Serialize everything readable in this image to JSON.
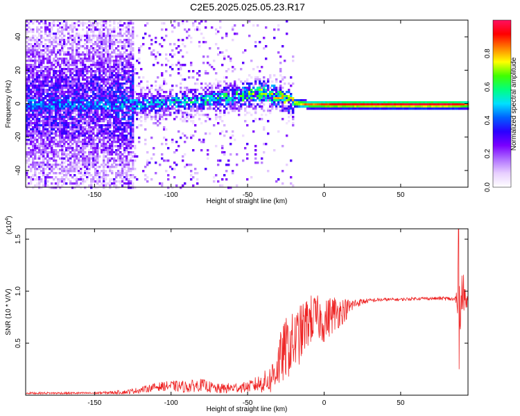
{
  "chart_data": [
    {
      "type": "heatmap",
      "title": "C2E5.2025.025.05.23.R17",
      "xlabel": "Height of straight line (km)",
      "ylabel": "Frequency (Hz)",
      "xlim": [
        -195,
        94
      ],
      "ylim": [
        -50,
        50
      ],
      "xticks": [
        "-150",
        "-100",
        "-50",
        "0",
        "50"
      ],
      "yticks": [
        "-40",
        "-20",
        "0",
        "20",
        "40"
      ],
      "colorbar": {
        "label": "Normalized spectral amplitude",
        "range": [
          0,
          1
        ],
        "ticks": [
          "0.0",
          "0.2",
          "0.4",
          "0.6",
          "0.8"
        ],
        "colormap": [
          "#ffffff",
          "#e8d0ff",
          "#b070ff",
          "#7a00ff",
          "#2a00ff",
          "#0060ff",
          "#00e0ff",
          "#00ff80",
          "#40ff00",
          "#ffff00",
          "#ff8000",
          "#ff0000",
          "#ff1060"
        ]
      },
      "ridge": {
        "x": [
          -195,
          -150,
          -100,
          -75,
          -60,
          -50,
          -40,
          -30,
          -20,
          -10,
          0,
          10,
          30,
          60,
          85,
          94
        ],
        "center_freq": [
          0,
          0,
          1,
          3,
          5,
          6,
          7,
          5,
          1,
          0,
          0,
          0,
          0,
          0,
          0,
          0
        ],
        "peak_amplitude": [
          0.35,
          0.35,
          0.45,
          0.5,
          0.55,
          0.6,
          0.65,
          0.7,
          0.8,
          0.85,
          0.9,
          0.95,
          0.97,
          0.98,
          0.98,
          0.85
        ]
      }
    },
    {
      "type": "line",
      "title": "",
      "xlabel": "Height of straight line (km)",
      "ylabel": "SNR (10 * V/V)",
      "y_multiplier": "(x10",
      "y_multiplier_exp": "4",
      "xlim": [
        -195,
        94
      ],
      "ylim": [
        0,
        1.6
      ],
      "xticks": [
        "-150",
        "-100",
        "-50",
        "0",
        "50"
      ],
      "yticks": [
        "0.5",
        "1.0",
        "1.5"
      ],
      "series": [
        {
          "color": "#ee2222",
          "x": [
            -195,
            -170,
            -150,
            -130,
            -120,
            -110,
            -100,
            -90,
            -80,
            -70,
            -60,
            -50,
            -40,
            -35,
            -30,
            -25,
            -20,
            -15,
            -10,
            -5,
            0,
            5,
            10,
            15,
            20,
            25,
            30,
            40,
            50,
            60,
            70,
            80,
            85,
            88,
            90,
            94
          ],
          "y": [
            0.02,
            0.02,
            0.02,
            0.03,
            0.05,
            0.08,
            0.09,
            0.08,
            0.1,
            0.06,
            0.07,
            0.08,
            0.12,
            0.15,
            0.3,
            0.45,
            0.5,
            0.6,
            0.72,
            0.75,
            0.7,
            0.78,
            0.8,
            0.83,
            0.88,
            0.9,
            0.91,
            0.92,
            0.92,
            0.93,
            0.93,
            0.93,
            0.92,
            0.9,
            0.95,
            0.91
          ],
          "noise": [
            0.01,
            0.01,
            0.01,
            0.02,
            0.03,
            0.04,
            0.05,
            0.06,
            0.06,
            0.05,
            0.05,
            0.05,
            0.1,
            0.14,
            0.25,
            0.3,
            0.3,
            0.28,
            0.25,
            0.22,
            0.2,
            0.2,
            0.15,
            0.1,
            0.05,
            0.03,
            0.02,
            0.015,
            0.015,
            0.015,
            0.015,
            0.02,
            0.02,
            0.3,
            0.3,
            0.02
          ]
        }
      ]
    }
  ]
}
